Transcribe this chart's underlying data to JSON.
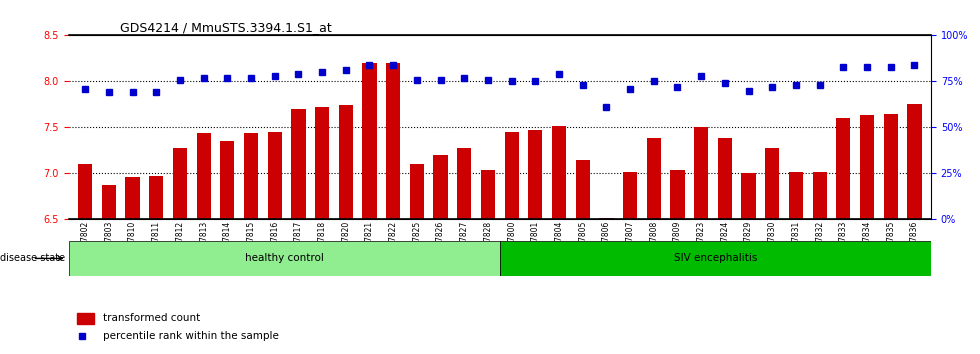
{
  "title": "GDS4214 / MmuSTS.3394.1.S1_at",
  "samples": [
    "GSM347802",
    "GSM347803",
    "GSM347810",
    "GSM347811",
    "GSM347812",
    "GSM347813",
    "GSM347814",
    "GSM347815",
    "GSM347816",
    "GSM347817",
    "GSM347818",
    "GSM347820",
    "GSM347821",
    "GSM347822",
    "GSM347825",
    "GSM347826",
    "GSM347827",
    "GSM347828",
    "GSM347800",
    "GSM347801",
    "GSM347804",
    "GSM347805",
    "GSM347806",
    "GSM347807",
    "GSM347808",
    "GSM347809",
    "GSM347823",
    "GSM347824",
    "GSM347829",
    "GSM347830",
    "GSM347831",
    "GSM347832",
    "GSM347833",
    "GSM347834",
    "GSM347835",
    "GSM347836"
  ],
  "bar_values": [
    7.1,
    6.87,
    6.96,
    6.97,
    7.28,
    7.44,
    7.35,
    7.44,
    7.45,
    7.7,
    7.72,
    7.74,
    8.2,
    8.2,
    7.1,
    7.2,
    7.28,
    7.04,
    7.45,
    7.47,
    7.52,
    7.15,
    6.52,
    7.02,
    7.38,
    7.04,
    7.5,
    7.38,
    7.0,
    7.28,
    7.02,
    7.02,
    7.6,
    7.63,
    7.65,
    7.75
  ],
  "percentile_values": [
    71,
    69,
    69,
    69,
    76,
    77,
    77,
    77,
    78,
    79,
    80,
    81,
    84,
    84,
    76,
    76,
    77,
    76,
    75,
    75,
    79,
    73,
    61,
    71,
    75,
    72,
    78,
    74,
    70,
    72,
    73,
    73,
    83,
    83,
    83,
    84
  ],
  "healthy_control_count": 18,
  "bar_color": "#CC0000",
  "percentile_color": "#0000CC",
  "ylim_left": [
    6.5,
    8.5
  ],
  "ylim_right": [
    0,
    100
  ],
  "yticks_left": [
    6.5,
    7.0,
    7.5,
    8.0,
    8.5
  ],
  "yticks_right": [
    0,
    25,
    50,
    75,
    100
  ],
  "ylabel_right_labels": [
    "0%",
    "25%",
    "50%",
    "75%",
    "100%"
  ],
  "healthy_label": "healthy control",
  "siv_label": "SIV encephalitis",
  "disease_state_label": "disease state",
  "legend_bar_label": "transformed count",
  "legend_dot_label": "percentile rank within the sample",
  "healthy_color": "#90EE90",
  "siv_color": "#00BB00",
  "bg_color": "#FFFFFF"
}
